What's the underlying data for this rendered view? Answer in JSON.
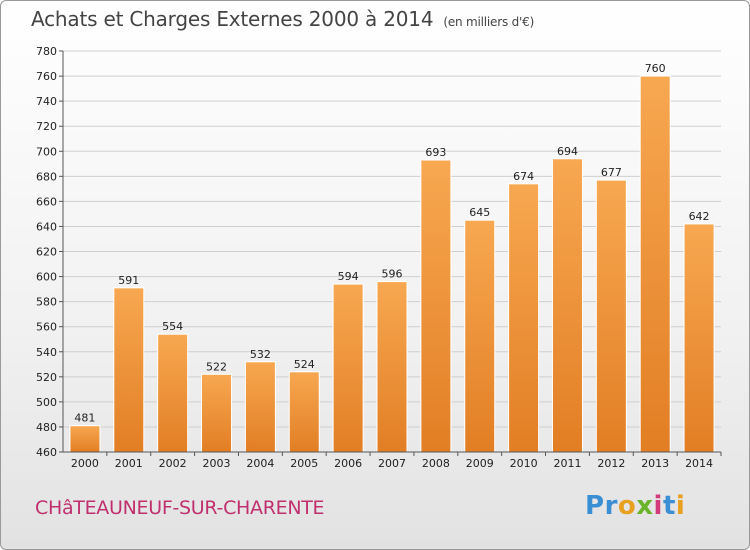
{
  "header": {
    "title": "Achats et Charges Externes 2000 à 2014",
    "unit": "(en milliers d'€)"
  },
  "footer": {
    "location": "CHâTEAUNEUF-SUR-CHARENTE",
    "logo_letters": [
      "P",
      "r",
      "o",
      "x",
      "i",
      "t",
      "i"
    ],
    "logo_colors": [
      "#3a8fd4",
      "#3a8fd4",
      "#e8a020",
      "#6ab42c",
      "#d23a7a",
      "#3a8fd4",
      "#e8a020"
    ]
  },
  "colors": {
    "bar_light": "#f7a851",
    "bar_dark": "#e27e24",
    "grid": "#cfcfcf"
  },
  "chart_data": {
    "type": "bar",
    "categories": [
      "2000",
      "2001",
      "2002",
      "2003",
      "2004",
      "2005",
      "2006",
      "2007",
      "2008",
      "2009",
      "2010",
      "2011",
      "2012",
      "2013",
      "2014"
    ],
    "values": [
      481,
      591,
      554,
      522,
      532,
      524,
      594,
      596,
      693,
      645,
      674,
      694,
      677,
      760,
      642
    ],
    "ylim": [
      460,
      780
    ],
    "yticks": [
      460,
      480,
      500,
      520,
      540,
      560,
      580,
      600,
      620,
      640,
      660,
      680,
      700,
      720,
      740,
      760,
      780
    ],
    "grid": true,
    "legend": "none"
  }
}
